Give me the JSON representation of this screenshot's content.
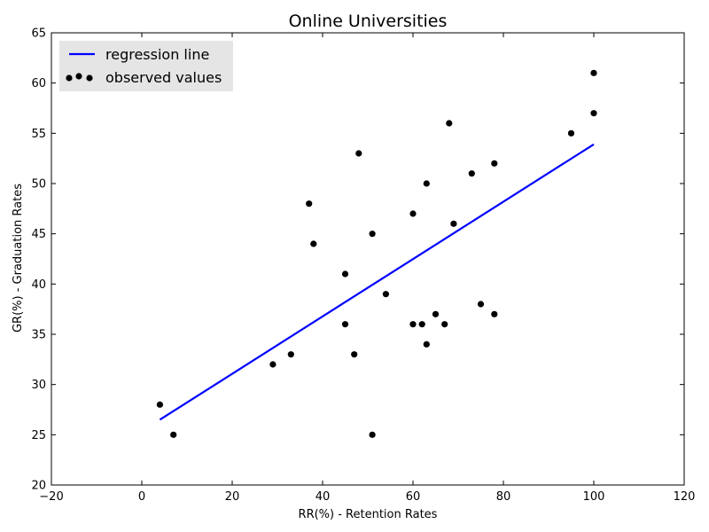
{
  "chart_data": {
    "type": "scatter",
    "title": "Online Universities",
    "xlabel": "RR(%) - Retention Rates",
    "ylabel": "GR(%) - Graduation Rates",
    "xlim": [
      -20,
      120
    ],
    "ylim": [
      20,
      65
    ],
    "xticks": [
      -20,
      0,
      20,
      40,
      60,
      80,
      100,
      120
    ],
    "yticks": [
      20,
      25,
      30,
      35,
      40,
      45,
      50,
      55,
      60,
      65
    ],
    "xtick_labels": [
      "−20",
      "0",
      "20",
      "40",
      "60",
      "80",
      "100",
      "120"
    ],
    "ytick_labels": [
      "20",
      "25",
      "30",
      "35",
      "40",
      "45",
      "50",
      "55",
      "60",
      "65"
    ],
    "legend_position": "top-left",
    "grid": false,
    "series": [
      {
        "name": "regression line",
        "kind": "line",
        "color": "#0000ff",
        "points": [
          [
            4,
            26.5
          ],
          [
            100,
            53.9
          ]
        ]
      },
      {
        "name": "observed values",
        "kind": "scatter",
        "color": "#000000",
        "points": [
          [
            4,
            28
          ],
          [
            7,
            25
          ],
          [
            29,
            32
          ],
          [
            33,
            33
          ],
          [
            37,
            48
          ],
          [
            38,
            44
          ],
          [
            45,
            41
          ],
          [
            45,
            36
          ],
          [
            47,
            33
          ],
          [
            48,
            53
          ],
          [
            51,
            45
          ],
          [
            51,
            25
          ],
          [
            54,
            39
          ],
          [
            60,
            47
          ],
          [
            60,
            36
          ],
          [
            62,
            36
          ],
          [
            63,
            50
          ],
          [
            63,
            34
          ],
          [
            65,
            37
          ],
          [
            67,
            36
          ],
          [
            68,
            56
          ],
          [
            69,
            46
          ],
          [
            73,
            51
          ],
          [
            75,
            38
          ],
          [
            78,
            52
          ],
          [
            78,
            37
          ],
          [
            95,
            55
          ],
          [
            100,
            61
          ],
          [
            100,
            57
          ]
        ]
      }
    ]
  }
}
